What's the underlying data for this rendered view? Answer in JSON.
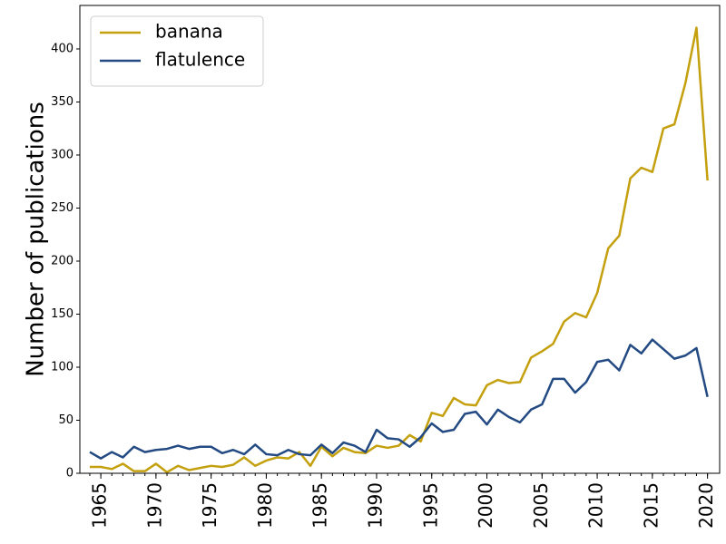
{
  "chart_data": {
    "type": "line",
    "ylabel": "Number of publications",
    "x": [
      1964,
      1965,
      1966,
      1967,
      1968,
      1969,
      1970,
      1971,
      1972,
      1973,
      1974,
      1975,
      1976,
      1977,
      1978,
      1979,
      1980,
      1981,
      1982,
      1983,
      1984,
      1985,
      1986,
      1987,
      1988,
      1989,
      1990,
      1991,
      1992,
      1993,
      1994,
      1995,
      1996,
      1997,
      1998,
      1999,
      2000,
      2001,
      2002,
      2003,
      2004,
      2005,
      2006,
      2007,
      2008,
      2009,
      2010,
      2011,
      2012,
      2013,
      2014,
      2015,
      2016,
      2017,
      2018,
      2019,
      2020
    ],
    "series": [
      {
        "name": "banana",
        "color": "#c4a00e",
        "values": [
          6,
          6,
          4,
          9,
          2,
          2,
          9,
          1,
          7,
          3,
          5,
          7,
          6,
          8,
          15,
          7,
          12,
          15,
          14,
          20,
          7,
          25,
          16,
          24,
          20,
          19,
          26,
          24,
          26,
          36,
          30,
          57,
          54,
          71,
          65,
          64,
          83,
          88,
          85,
          86,
          109,
          115,
          122,
          143,
          151,
          147,
          170,
          212,
          224,
          278,
          288,
          284,
          325,
          329,
          368,
          420,
          276
        ]
      },
      {
        "name": "flatulence",
        "color": "#234a82",
        "values": [
          20,
          14,
          20,
          15,
          25,
          20,
          22,
          23,
          26,
          23,
          25,
          25,
          19,
          22,
          18,
          27,
          18,
          17,
          22,
          18,
          17,
          27,
          19,
          29,
          26,
          20,
          41,
          33,
          32,
          25,
          34,
          47,
          39,
          41,
          56,
          58,
          46,
          60,
          53,
          48,
          60,
          65,
          89,
          89,
          76,
          86,
          105,
          107,
          97,
          121,
          113,
          126,
          117,
          108,
          111,
          118,
          72
        ]
      }
    ],
    "xlim": [
      1963.1,
      2021.1
    ],
    "xticks": [
      1965,
      1970,
      1975,
      1980,
      1985,
      1990,
      1995,
      2000,
      2005,
      2010,
      2015,
      2020
    ],
    "xminorticks": [
      1964,
      1965,
      1966,
      1967,
      1968,
      1969,
      1970,
      1971,
      1972,
      1973,
      1974,
      1975,
      1976,
      1977,
      1978,
      1979,
      1980,
      1981,
      1982,
      1983,
      1984,
      1985,
      1986,
      1987,
      1988,
      1989,
      1990,
      1991,
      1992,
      1993,
      1994,
      1995,
      1996,
      1997,
      1998,
      1999,
      2000,
      2001,
      2002,
      2003,
      2004,
      2005,
      2006,
      2007,
      2008,
      2009,
      2010,
      2011,
      2012,
      2013,
      2014,
      2015,
      2016,
      2017,
      2018,
      2019,
      2020
    ],
    "ylim": [
      0,
      441
    ],
    "yticks": [
      0,
      50,
      100,
      150,
      200,
      250,
      300,
      350,
      400
    ],
    "legend": "upper left"
  }
}
